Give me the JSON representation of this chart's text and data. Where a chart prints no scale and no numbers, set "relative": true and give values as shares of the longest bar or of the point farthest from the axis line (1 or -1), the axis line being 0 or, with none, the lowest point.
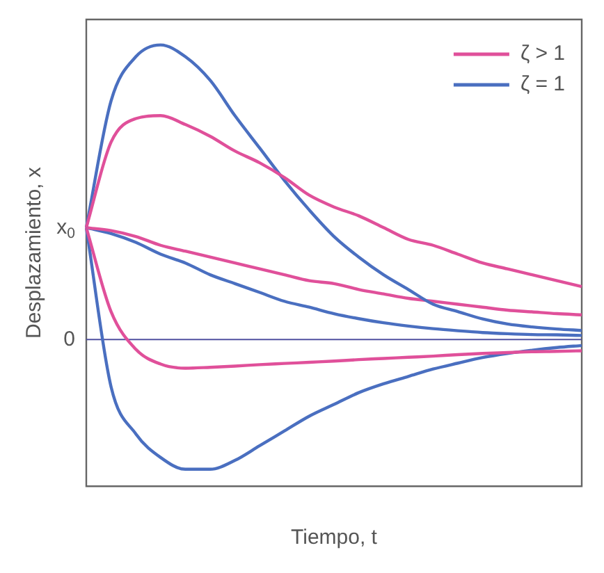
{
  "chart_data": {
    "type": "line",
    "relative": true,
    "xlabel": "Tiempo, t",
    "ylabel": "Desplazamiento, x",
    "legend": "top right",
    "marker": "none",
    "grid": false,
    "categories": [
      null,
      null,
      null,
      null,
      null,
      null,
      null,
      null,
      null,
      null,
      null,
      null,
      null,
      null,
      null,
      null,
      null,
      null,
      null,
      null,
      null
    ],
    "series": [
      {
        "name": "ζ > 1",
        "color": "#e0509a",
        "values": [
          0.38,
          0.67,
          0.75,
          0.76,
          0.73,
          0.69,
          0.64,
          0.6,
          0.55,
          0.49,
          0.45,
          0.42,
          0.38,
          0.34,
          0.32,
          0.29,
          0.26,
          0.24,
          0.22,
          0.2,
          0.18
        ]
      },
      {
        "name": "ζ = 1",
        "color": "#4a6fc0",
        "values": [
          0.38,
          0.81,
          0.96,
          1.0,
          0.96,
          0.88,
          0.76,
          0.65,
          0.54,
          0.44,
          0.35,
          0.28,
          0.22,
          0.17,
          0.12,
          0.095,
          0.07,
          0.053,
          0.043,
          0.036,
          0.031
        ]
      },
      {
        "color": "#e0509a",
        "values": [
          0.38,
          0.37,
          0.35,
          0.32,
          0.3,
          0.28,
          0.26,
          0.24,
          0.22,
          0.2,
          0.19,
          0.17,
          0.155,
          0.14,
          0.13,
          0.12,
          0.11,
          0.1,
          0.094,
          0.088,
          0.084
        ]
      },
      {
        "color": "#4a6fc0",
        "values": [
          0.38,
          0.36,
          0.33,
          0.29,
          0.26,
          0.22,
          0.19,
          0.16,
          0.13,
          0.11,
          0.088,
          0.071,
          0.057,
          0.046,
          0.037,
          0.03,
          0.024,
          0.02,
          0.017,
          0.016,
          0.014
        ]
      },
      {
        "color": "#e0509a",
        "values": [
          0.38,
          0.095,
          -0.033,
          -0.083,
          -0.097,
          -0.094,
          -0.09,
          -0.085,
          -0.081,
          -0.077,
          -0.073,
          -0.068,
          -0.064,
          -0.06,
          -0.056,
          -0.051,
          -0.047,
          -0.044,
          -0.041,
          -0.04,
          -0.038
        ]
      },
      {
        "color": "#4a6fc0",
        "values": [
          0.38,
          -0.16,
          -0.32,
          -0.4,
          -0.44,
          -0.44,
          -0.41,
          -0.36,
          -0.31,
          -0.26,
          -0.22,
          -0.18,
          -0.15,
          -0.125,
          -0.1,
          -0.08,
          -0.061,
          -0.047,
          -0.036,
          -0.027,
          -0.02
        ]
      }
    ],
    "ref_lines": [
      {
        "axis": "y",
        "value": 0,
        "label": "0",
        "color": "#5050a0"
      }
    ],
    "annotations": [
      "x$_{0}$"
    ]
  }
}
